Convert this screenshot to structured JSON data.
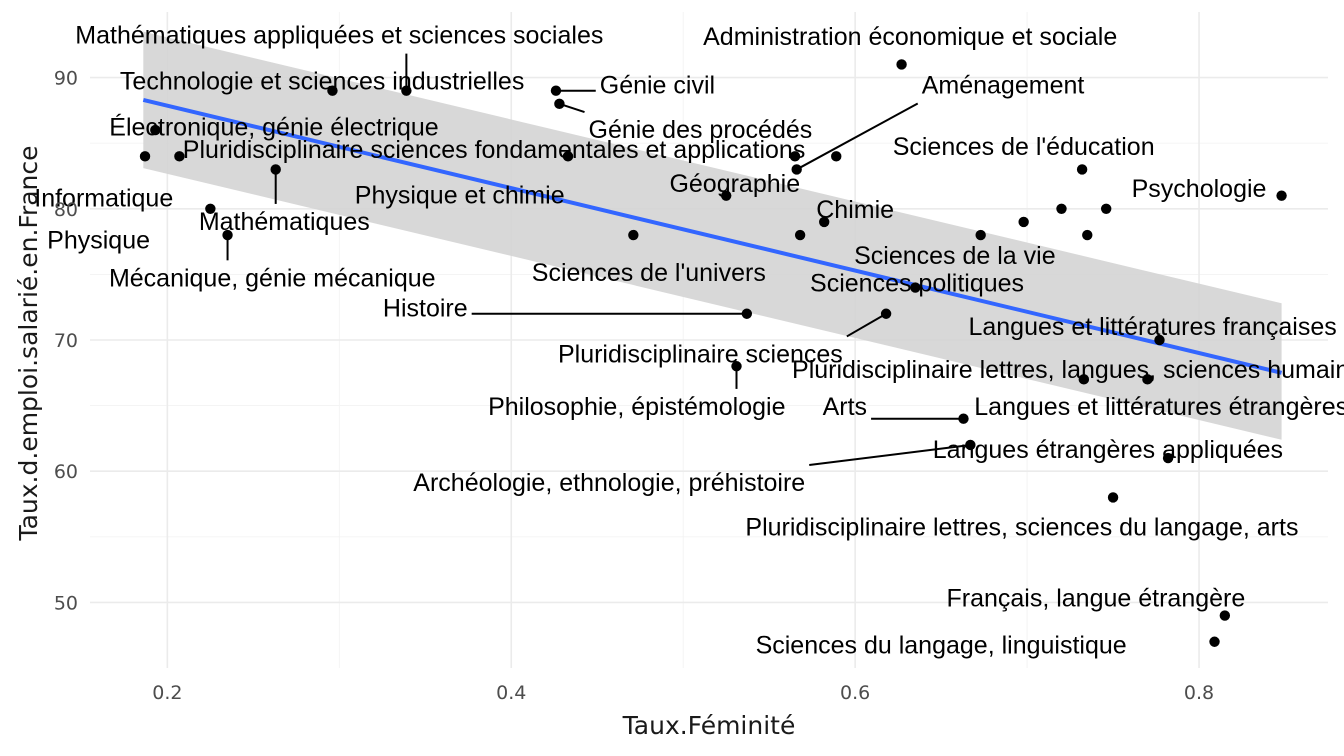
{
  "chart_data": {
    "type": "scatter",
    "xlabel": "Taux.Féminité",
    "ylabel": "Taux.d.emploi.salarié.en.France",
    "xlim": [
      0.155,
      0.875
    ],
    "ylim": [
      45,
      95
    ],
    "x_ticks": [
      0.2,
      0.4,
      0.6,
      0.8
    ],
    "x_tick_labels": [
      "0.2",
      "0.4",
      "0.6",
      "0.8"
    ],
    "y_ticks": [
      50,
      60,
      70,
      80,
      90
    ],
    "y_tick_labels": [
      "50",
      "60",
      "70",
      "80",
      "90"
    ],
    "grid": true,
    "legend": "none",
    "trend": {
      "type": "linear",
      "x": [
        0.186,
        0.848
      ],
      "y": [
        88.3,
        67.5
      ],
      "band_upper": [
        93.5,
        72.8
      ],
      "band_lower": [
        83.1,
        62.4
      ],
      "color": "#3366ff",
      "band_color": "#d4d4d4"
    },
    "points": [
      {
        "x": 0.187,
        "y": 84
      },
      {
        "x": 0.193,
        "y": 86
      },
      {
        "x": 0.207,
        "y": 84
      },
      {
        "x": 0.225,
        "y": 80
      },
      {
        "x": 0.235,
        "y": 78
      },
      {
        "x": 0.263,
        "y": 83
      },
      {
        "x": 0.296,
        "y": 89
      },
      {
        "x": 0.339,
        "y": 89
      },
      {
        "x": 0.426,
        "y": 89
      },
      {
        "x": 0.428,
        "y": 88
      },
      {
        "x": 0.433,
        "y": 84
      },
      {
        "x": 0.471,
        "y": 78
      },
      {
        "x": 0.525,
        "y": 81
      },
      {
        "x": 0.531,
        "y": 68
      },
      {
        "x": 0.537,
        "y": 72
      },
      {
        "x": 0.565,
        "y": 84
      },
      {
        "x": 0.566,
        "y": 83
      },
      {
        "x": 0.568,
        "y": 78
      },
      {
        "x": 0.582,
        "y": 79
      },
      {
        "x": 0.589,
        "y": 84
      },
      {
        "x": 0.618,
        "y": 72
      },
      {
        "x": 0.627,
        "y": 91
      },
      {
        "x": 0.635,
        "y": 74
      },
      {
        "x": 0.663,
        "y": 64
      },
      {
        "x": 0.667,
        "y": 62
      },
      {
        "x": 0.673,
        "y": 78
      },
      {
        "x": 0.698,
        "y": 79
      },
      {
        "x": 0.72,
        "y": 80
      },
      {
        "x": 0.732,
        "y": 83
      },
      {
        "x": 0.733,
        "y": 67
      },
      {
        "x": 0.735,
        "y": 78
      },
      {
        "x": 0.746,
        "y": 80
      },
      {
        "x": 0.75,
        "y": 58
      },
      {
        "x": 0.77,
        "y": 67
      },
      {
        "x": 0.777,
        "y": 70
      },
      {
        "x": 0.782,
        "y": 61
      },
      {
        "x": 0.809,
        "y": 47
      },
      {
        "x": 0.815,
        "y": 49
      },
      {
        "x": 0.848,
        "y": 81
      }
    ],
    "labels": [
      {
        "text": "Mathématiques appliquées et sciences sociales",
        "x": 0.339,
        "y": 89,
        "lx": 0.3,
        "ly": 93.2,
        "anchor": "middle",
        "leader": true
      },
      {
        "text": "Technologie et sciences industrielles",
        "x": 0.296,
        "y": 89,
        "lx": 0.29,
        "ly": 89.7,
        "anchor": "middle",
        "leader": false
      },
      {
        "text": "Électronique, génie électrique",
        "x": 0.193,
        "y": 86,
        "lx": 0.262,
        "ly": 86.2,
        "anchor": "middle",
        "leader": false
      },
      {
        "text": "Pluridisciplinaire sciences fondamentales et applications",
        "x": 0.207,
        "y": 84,
        "lx": 0.39,
        "ly": 84.5,
        "anchor": "middle",
        "leader": false
      },
      {
        "text": "Informatique",
        "x": 0.225,
        "y": 80,
        "lx": 0.163,
        "ly": 80.8,
        "anchor": "middle",
        "leader": false
      },
      {
        "text": "Mathématiques",
        "x": 0.263,
        "y": 83,
        "lx": 0.268,
        "ly": 79.0,
        "anchor": "middle",
        "leader": true
      },
      {
        "text": "Physique",
        "x": 0.235,
        "y": 78,
        "lx": 0.16,
        "ly": 77.6,
        "anchor": "middle",
        "leader": false
      },
      {
        "text": "Mécanique, génie mécanique",
        "x": 0.235,
        "y": 78,
        "lx": 0.261,
        "ly": 74.7,
        "anchor": "middle",
        "leader": true
      },
      {
        "text": "Génie civil",
        "x": 0.426,
        "y": 89,
        "lx": 0.485,
        "ly": 89.4,
        "anchor": "middle",
        "leader": true
      },
      {
        "text": "Génie des procédés",
        "x": 0.428,
        "y": 88,
        "lx": 0.51,
        "ly": 86.0,
        "anchor": "middle",
        "leader": true
      },
      {
        "text": "Physique et chimie",
        "x": 0.433,
        "y": 84,
        "lx": 0.37,
        "ly": 81.0,
        "anchor": "middle",
        "leader": false
      },
      {
        "text": "Sciences de l'univers",
        "x": 0.471,
        "y": 78,
        "lx": 0.48,
        "ly": 75.1,
        "anchor": "middle",
        "leader": false
      },
      {
        "text": "Géographie",
        "x": 0.525,
        "y": 81,
        "lx": 0.53,
        "ly": 81.9,
        "anchor": "middle",
        "leader": false
      },
      {
        "text": "Aménagement",
        "x": 0.566,
        "y": 83,
        "lx": 0.686,
        "ly": 89.4,
        "anchor": "middle",
        "leader": true
      },
      {
        "text": "Administration économique et sociale",
        "x": 0.627,
        "y": 91,
        "lx": 0.632,
        "ly": 93.1,
        "anchor": "middle",
        "leader": false
      },
      {
        "text": "Chimie",
        "x": 0.582,
        "y": 79,
        "lx": 0.6,
        "ly": 79.9,
        "anchor": "middle",
        "leader": false
      },
      {
        "text": "Sciences de l'éducation",
        "x": 0.732,
        "y": 83,
        "lx": 0.698,
        "ly": 84.7,
        "anchor": "middle",
        "leader": false
      },
      {
        "text": "Psychologie",
        "x": 0.848,
        "y": 81,
        "lx": 0.8,
        "ly": 81.5,
        "anchor": "middle",
        "leader": false
      },
      {
        "text": "Sciences de la vie",
        "x": 0.673,
        "y": 78,
        "lx": 0.658,
        "ly": 76.4,
        "anchor": "middle",
        "leader": false
      },
      {
        "text": "Sciences politiques",
        "x": 0.635,
        "y": 74,
        "lx": 0.636,
        "ly": 74.3,
        "anchor": "middle",
        "leader": false
      },
      {
        "text": "Histoire",
        "x": 0.537,
        "y": 72,
        "lx": 0.35,
        "ly": 72.4,
        "anchor": "middle",
        "leader": true
      },
      {
        "text": "Langues et littératures françaises",
        "x": 0.777,
        "y": 70,
        "lx": 0.773,
        "ly": 71.0,
        "anchor": "middle",
        "leader": false
      },
      {
        "text": "Pluridisciplinaire sciences",
        "x": 0.618,
        "y": 72,
        "lx": 0.51,
        "ly": 68.9,
        "anchor": "middle",
        "leader": true
      },
      {
        "text": "Pluridisciplinaire lettres, langues, sciences humaines",
        "x": 0.77,
        "y": 67,
        "lx": 0.733,
        "ly": 67.7,
        "anchor": "middle",
        "leader": false
      },
      {
        "text": "Philosophie, épistémologie",
        "x": 0.531,
        "y": 68,
        "lx": 0.473,
        "ly": 64.9,
        "anchor": "middle",
        "leader": true
      },
      {
        "text": "Arts",
        "x": 0.663,
        "y": 64,
        "lx": 0.594,
        "ly": 64.9,
        "anchor": "middle",
        "leader": true
      },
      {
        "text": "Langues et littératures étrangères",
        "x": 0.733,
        "y": 67,
        "lx": 0.778,
        "ly": 64.9,
        "anchor": "middle",
        "leader": false
      },
      {
        "text": "Langues étrangères appliquées",
        "x": 0.782,
        "y": 61,
        "lx": 0.747,
        "ly": 61.6,
        "anchor": "middle",
        "leader": false
      },
      {
        "text": "Archéologie, ethnologie, préhistoire",
        "x": 0.667,
        "y": 62,
        "lx": 0.457,
        "ly": 59.1,
        "anchor": "middle",
        "leader": true
      },
      {
        "text": "Pluridisciplinaire lettres, sciences du langage, arts",
        "x": 0.75,
        "y": 58,
        "lx": 0.697,
        "ly": 55.7,
        "anchor": "middle",
        "leader": false
      },
      {
        "text": "Français, langue étrangère",
        "x": 0.815,
        "y": 49,
        "lx": 0.74,
        "ly": 50.3,
        "anchor": "middle",
        "leader": false
      },
      {
        "text": "Sciences du langage, linguistique",
        "x": 0.809,
        "y": 47,
        "lx": 0.65,
        "ly": 46.7,
        "anchor": "middle",
        "leader": false
      }
    ]
  }
}
